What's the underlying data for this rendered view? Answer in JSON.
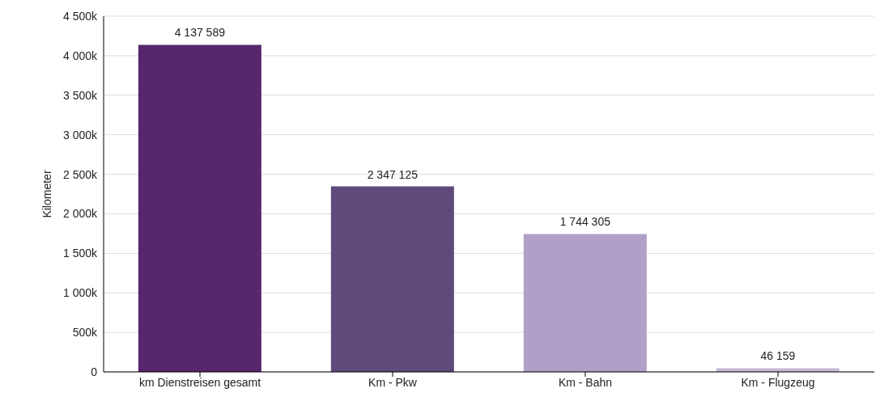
{
  "chart_data": {
    "type": "bar",
    "ylabel": "Kilometer",
    "categories": [
      "km Dienstreisen gesamt",
      "Km - Pkw",
      "Km - Bahn",
      "Km - Flugzeug"
    ],
    "values": [
      4137589,
      2347125,
      1744305,
      46159
    ],
    "colors": [
      "#58266d",
      "#5f4a7b",
      "#b0a0c8",
      "#c4b8d6"
    ],
    "value_labels": [
      "4 137 589",
      "2 347 125",
      "1 744 305",
      "46 159"
    ],
    "ylim": [
      0,
      4500000
    ],
    "yticks": [
      {
        "value": 0,
        "label": "0"
      },
      {
        "value": 500000,
        "label": "500k"
      },
      {
        "value": 1000000,
        "label": "1 000k"
      },
      {
        "value": 1500000,
        "label": "1 500k"
      },
      {
        "value": 2000000,
        "label": "2 000k"
      },
      {
        "value": 2500000,
        "label": "2 500k"
      },
      {
        "value": 3000000,
        "label": "3 000k"
      },
      {
        "value": 3500000,
        "label": "3 500k"
      },
      {
        "value": 4000000,
        "label": "4 000k"
      },
      {
        "value": 4500000,
        "label": "4 500k"
      }
    ],
    "grid": "y",
    "legend": false
  }
}
